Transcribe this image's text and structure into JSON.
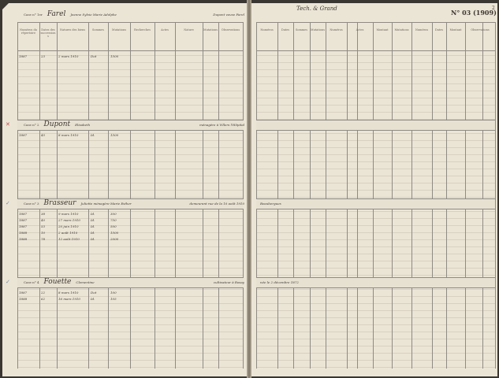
{
  "document": {
    "page_number": "N° 03 (1909)",
    "page_number_suffix": "2",
    "left_header_cols": [
      "Numéros du répertoire",
      "Dates des successions",
      "Natures des biens",
      "Sommes",
      "Mutations",
      "Recherches",
      "Actes",
      "Nature",
      "Mutations",
      "Observations"
    ],
    "right_header_cols": [
      "Numéros",
      "Dates",
      "Sommes",
      "Mutations",
      "Numéros",
      "Actes",
      "Montant",
      "Mutations",
      "Numéros",
      "Dates",
      "Montant",
      "Observations"
    ],
    "top_note_right": "Tech. & Grand",
    "cases": [
      {
        "label": "Case n° 1er",
        "name": "Farel",
        "details": "Jeanne Sylvie Marie Adolphe",
        "extra": "Dupont veuve Farel",
        "rows": [
          [
            "1887",
            "23",
            "2 mars 1910",
            "Dot",
            "1500"
          ]
        ],
        "mark": ""
      },
      {
        "label": "Case n° 2",
        "name": "Dupont",
        "details": "Elisabeth",
        "extra": "ménagère à Villers l'Hôpital",
        "rows": [
          [
            "1887",
            "45",
            "8 mars 1910",
            "Id.",
            "1500"
          ]
        ],
        "mark": "✕"
      },
      {
        "label": "Case n° 3",
        "name": "Brasseur",
        "details": "Juliette ménagère Marie Esther",
        "extra": "demeurant rue de la 10 août 1910",
        "right_note": "Beaubergues",
        "rows": [
          [
            "1887",
            "38",
            "9 mars 1910",
            "Id.",
            "300"
          ],
          [
            "1887",
            "40",
            "27 mars 1910",
            "Id.",
            "750"
          ],
          [
            "1887",
            "53",
            "20 juin 1910",
            "Id.",
            "500"
          ],
          [
            "1888",
            "10",
            "2 août 1910",
            "Id.",
            "1500"
          ],
          [
            "1888",
            "78",
            "12 août 1910",
            "Id.",
            "2000"
          ]
        ],
        "mark": "✓"
      },
      {
        "label": "Case n° 4",
        "name": "Fouette",
        "details": "Clementine",
        "extra": "cultivateur à Rosay",
        "right_note": "née le 2 décembre 1872",
        "rows": [
          [
            "1887",
            "22",
            "8 mars 1910",
            "Dot",
            "100"
          ],
          [
            "1888",
            "62",
            "16 mars 1910",
            "Id.",
            "105"
          ]
        ],
        "mark": "✓"
      }
    ]
  }
}
